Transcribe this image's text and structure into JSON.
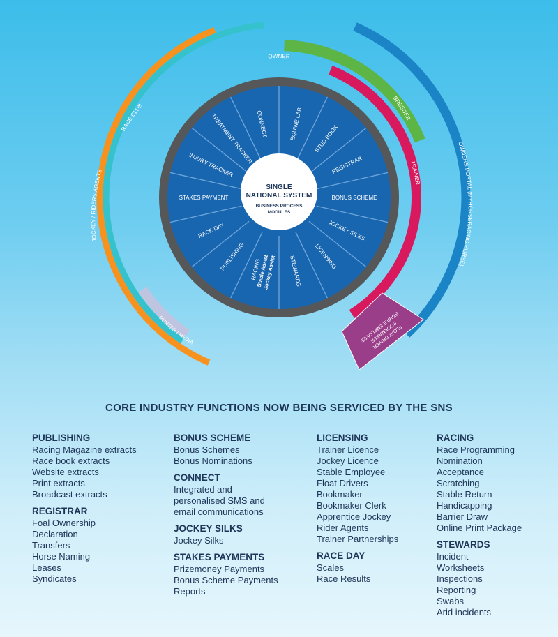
{
  "colors": {
    "segment_blue": "#1966b0",
    "segment_line": "#6fa6da",
    "outer_ring": "#555759",
    "centre": "#ffffff",
    "orange": "#f7921e",
    "teal": "#35c2cc",
    "green": "#5db546",
    "magenta": "#d9195e",
    "purple": "#9a3e8a",
    "navy_arc": "#1a84c7",
    "media": "#bfc4e0",
    "text_dark": "#1d3557"
  },
  "wheel": {
    "center_title": [
      "SINGLE",
      "NATIONAL SYSTEM"
    ],
    "center_subtitle": [
      "BUSINESS PROCESS",
      "MODULES"
    ],
    "owner": "OWNER",
    "segments": [
      [
        "EQUINE LAB"
      ],
      [
        "STUD BOOK"
      ],
      [
        "REGISTRAR"
      ],
      [
        "BONUS SCHEME"
      ],
      [
        "JOCKEY SILKS"
      ],
      [
        "LICENSING"
      ],
      [
        "STEWARDS"
      ],
      [
        "RACING",
        "Stable Assist",
        "Jockey Assist"
      ],
      [
        "PUBLISHING"
      ],
      [
        "RACE DAY"
      ],
      [
        "STAKES PAYMENT"
      ],
      [
        "INJURY TRACKER"
      ],
      [
        "TREATMENT TRACKER"
      ],
      [
        "CONNECT"
      ]
    ],
    "arcs": {
      "race_club": "RACE CLUB",
      "jockey_riders": "JOCKEY / RIDERS AGENTS",
      "punter_media": "PUNTER / MEDIA",
      "breeder": "BREEDER",
      "trainer": "TRAINER",
      "owners_portal": "OWNERS PORTAL (MYHORSERACING.HORSE)",
      "float_box": [
        "FLOAT DRIVER",
        "BOOKMAKER",
        "STABLE EMPLOYEE"
      ]
    }
  },
  "heading": "CORE INDUSTRY FUNCTIONS NOW  BEING SERVICED BY THE SNS",
  "columns": [
    [
      {
        "title": "PUBLISHING",
        "items": [
          "Racing Magazine extracts",
          "Race book extracts",
          "Website extracts",
          "Print extracts",
          "Broadcast extracts"
        ]
      },
      {
        "title": "REGISTRAR",
        "items": [
          "Foal Ownership",
          "Declaration",
          "Transfers",
          "Horse Naming",
          "Leases",
          "Syndicates"
        ]
      }
    ],
    [
      {
        "title": "BONUS SCHEME",
        "items": [
          "Bonus Schemes",
          "Bonus Nominations"
        ]
      },
      {
        "title": "CONNECT",
        "items": [
          "Integrated and",
          "personalised SMS and",
          "email communications"
        ]
      },
      {
        "title": "JOCKEY SILKS",
        "items": [
          "Jockey Silks"
        ]
      },
      {
        "title": "STAKES PAYMENTS",
        "items": [
          "Prizemoney Payments",
          "Bonus Scheme Payments",
          "Reports"
        ]
      }
    ],
    [
      {
        "title": "LICENSING",
        "items": [
          "Trainer Licence",
          "Jockey Licence",
          "Stable Employee",
          "Float Drivers",
          "Bookmaker",
          "Bookmaker Clerk",
          "Apprentice Jockey",
          "Rider Agents",
          "Trainer Partnerships"
        ]
      },
      {
        "title": "RACE DAY",
        "items": [
          "Scales",
          "Race Results"
        ]
      }
    ],
    [
      {
        "title": "RACING",
        "items": [
          "Race Programming",
          "Nomination",
          "Acceptance",
          "Scratching",
          "Stable Return",
          "Handicapping",
          "Barrier Draw",
          "Online Print Package"
        ]
      },
      {
        "title": "STEWARDS",
        "items": [
          "Incident",
          "Worksheets",
          "Inspections",
          "Reporting",
          "Swabs",
          "Arid incidents"
        ]
      }
    ]
  ]
}
